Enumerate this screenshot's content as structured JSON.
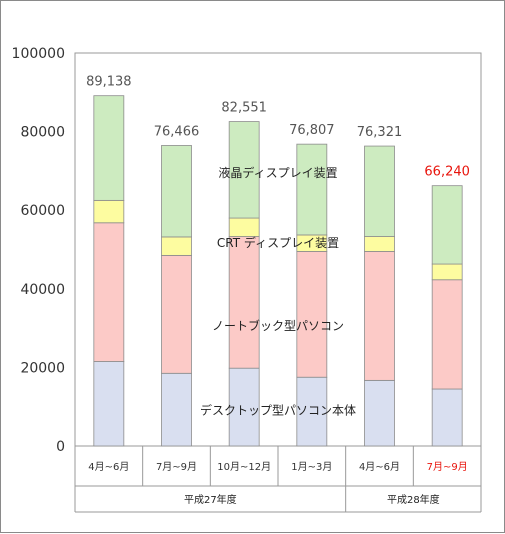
{
  "chart_data": {
    "type": "bar",
    "stacked": true,
    "categories": [
      "4月~6月",
      "7月~9月",
      "10月~12月",
      "1月~3月",
      "4月~6月",
      "7月~9月"
    ],
    "groups": [
      {
        "label": "平成27年度",
        "categories": [
          0,
          1,
          2,
          3
        ]
      },
      {
        "label": "平成28年度",
        "categories": [
          4,
          5
        ]
      }
    ],
    "series": [
      {
        "name": "デスクトップ型パソコン本体",
        "color": "#d9dff0",
        "values": [
          21500,
          18500,
          19800,
          17500,
          16700,
          14500
        ]
      },
      {
        "name": "ノートブック型パソコン",
        "color": "#fccac7",
        "values": [
          35300,
          30000,
          33500,
          32000,
          32800,
          27800
        ]
      },
      {
        "name": "CRT ディスプレイ装置",
        "color": "#fdfca0",
        "values": [
          5700,
          4700,
          4700,
          4200,
          3800,
          4000
        ]
      },
      {
        "name": "液晶ディスプレイ装置",
        "color": "#cdebc0",
        "values": [
          26638,
          23266,
          24551,
          23107,
          23021,
          19940
        ]
      }
    ],
    "totals": [
      "89,138",
      "76,466",
      "82,551",
      "76,807",
      "76,321",
      "66,240"
    ],
    "highlight_index": 5,
    "highlight_color": "#e8140c",
    "ylim": [
      0,
      100000
    ],
    "yticks": [
      "0",
      "20000",
      "40000",
      "60000",
      "80000",
      "100000"
    ],
    "grid": false,
    "legend": "inline labels on bars"
  }
}
